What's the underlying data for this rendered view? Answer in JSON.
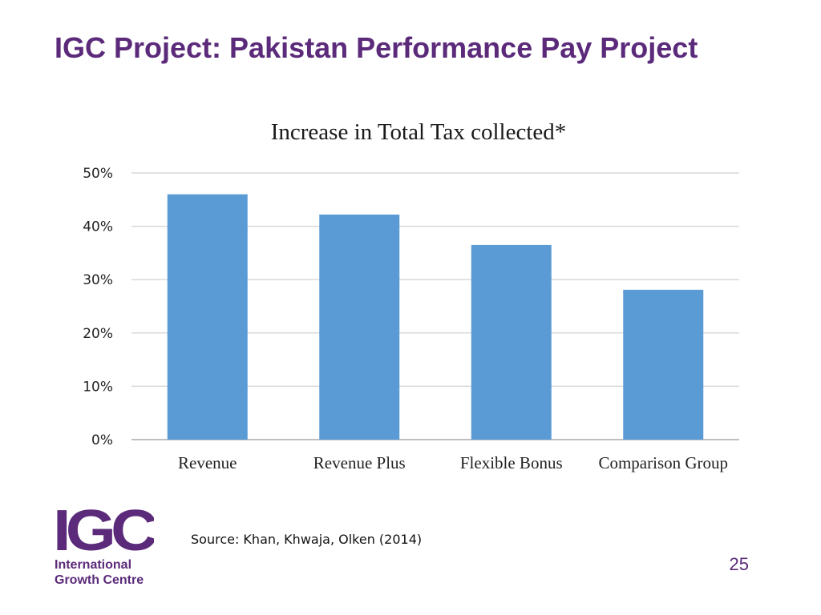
{
  "slide": {
    "title": "IGC Project: Pakistan Performance Pay Project",
    "source": "Source: Khan, Khwaja, Olken (2014)",
    "page_number": "25"
  },
  "logo": {
    "letters": "IGC",
    "line1": "International",
    "line2": "Growth Centre"
  },
  "colors": {
    "brand": "#5b2a7a",
    "bar": "#5b9bd5",
    "grid": "#d9d9d9",
    "axis": "#bfbfbf"
  },
  "chart_data": {
    "type": "bar",
    "title": "Increase in Total Tax collected*",
    "categories": [
      "Revenue",
      "Revenue Plus",
      "Flexible Bonus",
      "Comparison Group"
    ],
    "values": [
      46,
      42.2,
      36.5,
      28.1
    ],
    "ylim": [
      0,
      50
    ],
    "yticks": [
      0,
      10,
      20,
      30,
      40,
      50
    ],
    "ytick_labels": [
      "0%",
      "10%",
      "20%",
      "30%",
      "40%",
      "50%"
    ],
    "grid": true,
    "legend": "none"
  }
}
